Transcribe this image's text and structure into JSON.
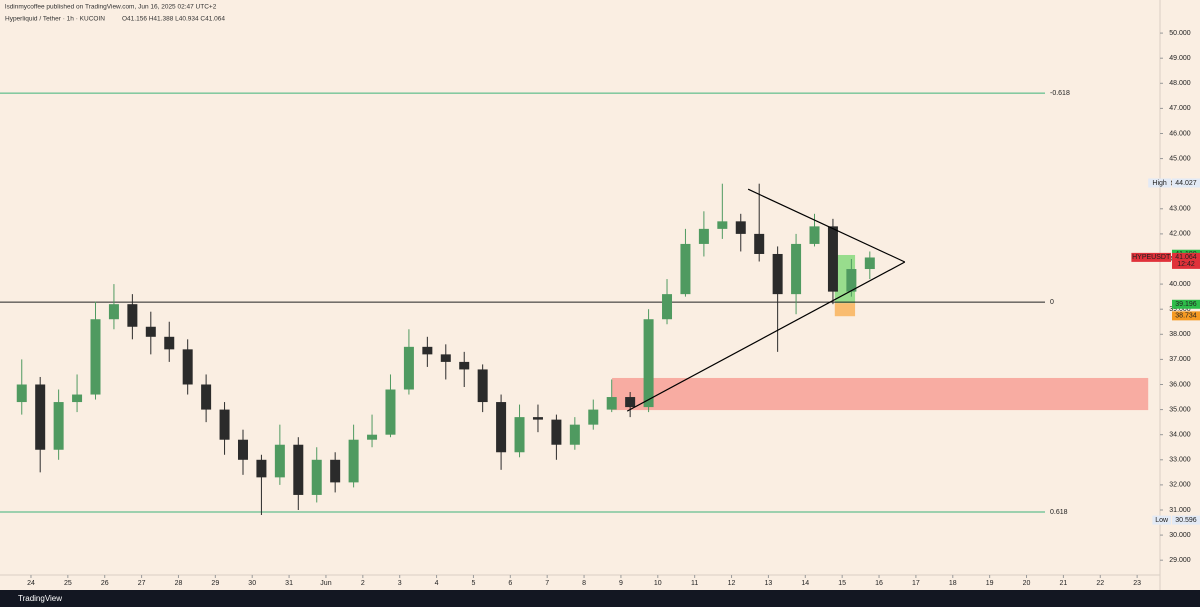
{
  "header": {
    "publisher": "lsdinmycoffee published on TradingView.com, Jun 16, 2025 02:47 UTC+2",
    "symbol": "Hyperliquid / Tether · 1h · KUCOIN",
    "ohlc": "O41.156 H41.388 L40.934 C41.064"
  },
  "footer": {
    "brand": "TradingView"
  },
  "chart_data": {
    "type": "candlestick",
    "x": [
      -0.25,
      0.25,
      0.75,
      1.25,
      1.75,
      2.25,
      2.75,
      3.25,
      3.75,
      4.25,
      4.75,
      5.25,
      5.75,
      6.25,
      6.75,
      7.25,
      7.75,
      8.25,
      8.75,
      9.25,
      9.75,
      10.25,
      10.75,
      11.25,
      11.75,
      12.25,
      12.75,
      13.25,
      13.75,
      14.25,
      14.75,
      15.25,
      15.75,
      16.25,
      16.75,
      17.25,
      17.75,
      18.25,
      18.75,
      19.25,
      19.75,
      20.25,
      20.75,
      21.25,
      21.75,
      22.25,
      22.75
    ],
    "open": [
      35.3,
      36.0,
      33.4,
      35.3,
      35.6,
      38.6,
      39.2,
      38.3,
      37.9,
      37.4,
      36.0,
      35.0,
      33.8,
      33.0,
      32.3,
      33.6,
      31.6,
      33.0,
      32.1,
      33.8,
      34.0,
      35.8,
      37.5,
      37.2,
      36.9,
      36.6,
      35.3,
      33.3,
      34.7,
      34.6,
      33.6,
      34.4,
      35.0,
      35.5,
      35.1,
      38.6,
      39.6,
      41.6,
      42.2,
      42.5,
      42.0,
      41.2,
      39.6,
      41.6,
      42.3,
      39.7,
      40.6
    ],
    "high": [
      37.0,
      36.3,
      35.8,
      36.4,
      39.3,
      40.0,
      39.6,
      38.9,
      38.5,
      37.8,
      36.4,
      35.3,
      34.2,
      33.2,
      34.4,
      33.9,
      33.5,
      33.3,
      34.4,
      34.8,
      36.4,
      38.2,
      37.9,
      37.6,
      37.3,
      36.8,
      35.6,
      35.2,
      35.2,
      34.8,
      34.7,
      35.4,
      36.2,
      35.7,
      39.0,
      40.2,
      42.2,
      42.9,
      44.0,
      42.8,
      44.0,
      41.5,
      42.0,
      42.8,
      42.6,
      41.0,
      41.3
    ],
    "low": [
      34.8,
      32.5,
      33.0,
      34.9,
      35.4,
      38.2,
      37.8,
      37.2,
      36.9,
      35.6,
      34.5,
      33.2,
      32.4,
      30.8,
      32.0,
      31.0,
      31.3,
      31.7,
      31.9,
      33.5,
      33.9,
      35.6,
      36.7,
      36.2,
      35.9,
      34.9,
      32.6,
      33.1,
      34.1,
      33.0,
      33.4,
      34.2,
      34.9,
      34.7,
      34.9,
      38.4,
      39.5,
      41.1,
      41.8,
      41.3,
      40.9,
      37.3,
      38.8,
      41.5,
      39.2,
      39.5,
      40.2
    ],
    "close": [
      36.0,
      33.4,
      35.3,
      35.6,
      38.6,
      39.2,
      38.3,
      37.9,
      37.4,
      36.0,
      35.0,
      33.8,
      33.0,
      32.3,
      33.6,
      31.6,
      33.0,
      32.1,
      33.8,
      34.0,
      35.8,
      37.5,
      37.2,
      36.9,
      36.6,
      35.3,
      33.3,
      34.7,
      34.6,
      33.6,
      34.4,
      35.0,
      35.5,
      35.1,
      38.6,
      39.6,
      41.6,
      42.2,
      42.5,
      42.0,
      41.2,
      39.6,
      41.6,
      42.3,
      39.7,
      40.6,
      41.06
    ],
    "up_color": "#4f9a60",
    "down_color": "#2b2b2b",
    "xlim": [
      -0.84,
      30.62
    ],
    "ylim": [
      28.41,
      50.92
    ],
    "xticks": [
      {
        "value": 0,
        "label": "24"
      },
      {
        "value": 1,
        "label": "25"
      },
      {
        "value": 2,
        "label": "26"
      },
      {
        "value": 3,
        "label": "27"
      },
      {
        "value": 4,
        "label": "28"
      },
      {
        "value": 5,
        "label": "29"
      },
      {
        "value": 6,
        "label": "30"
      },
      {
        "value": 7,
        "label": "31"
      },
      {
        "value": 8,
        "label": "Jun"
      },
      {
        "value": 9,
        "label": "2"
      },
      {
        "value": 10,
        "label": "3"
      },
      {
        "value": 11,
        "label": "4"
      },
      {
        "value": 12,
        "label": "5"
      },
      {
        "value": 13,
        "label": "6"
      },
      {
        "value": 14,
        "label": "7"
      },
      {
        "value": 15,
        "label": "8"
      },
      {
        "value": 16,
        "label": "9"
      },
      {
        "value": 17,
        "label": "10"
      },
      {
        "value": 18,
        "label": "11"
      },
      {
        "value": 19,
        "label": "12"
      },
      {
        "value": 20,
        "label": "13"
      },
      {
        "value": 21,
        "label": "14"
      },
      {
        "value": 22,
        "label": "15"
      },
      {
        "value": 23,
        "label": "16"
      },
      {
        "value": 24,
        "label": "17"
      },
      {
        "value": 25,
        "label": "18"
      },
      {
        "value": 26,
        "label": "19"
      },
      {
        "value": 27,
        "label": "20"
      },
      {
        "value": 28,
        "label": "21"
      },
      {
        "value": 29,
        "label": "22"
      },
      {
        "value": 30,
        "label": "23"
      }
    ],
    "yticks": [
      {
        "value": 50,
        "label": "50.000"
      },
      {
        "value": 49,
        "label": "49.000"
      },
      {
        "value": 48,
        "label": "48.000"
      },
      {
        "value": 47,
        "label": "47.000"
      },
      {
        "value": 46,
        "label": "46.000"
      },
      {
        "value": 45,
        "label": "45.000"
      },
      {
        "value": 44,
        "label": "44.000"
      },
      {
        "value": 43,
        "label": "43.000"
      },
      {
        "value": 42,
        "label": "42.000"
      },
      {
        "value": 41,
        "label": "41.000"
      },
      {
        "value": 40,
        "label": "40.000"
      },
      {
        "value": 39,
        "label": "39.000"
      },
      {
        "value": 38,
        "label": "38.000"
      },
      {
        "value": 37,
        "label": "37.000"
      },
      {
        "value": 36,
        "label": "36.000"
      },
      {
        "value": 35,
        "label": "35.000"
      },
      {
        "value": 34,
        "label": "34.000"
      },
      {
        "value": 33,
        "label": "33.000"
      },
      {
        "value": 32,
        "label": "32.000"
      },
      {
        "value": 31,
        "label": "31.000"
      },
      {
        "value": 30,
        "label": "30.000"
      },
      {
        "value": 29,
        "label": "29.000"
      }
    ],
    "levels": [
      {
        "value": 47.61,
        "label": "-0.618",
        "color": "#3fb37a"
      },
      {
        "value": 39.28,
        "label": "0",
        "color": "#222222"
      },
      {
        "value": 30.92,
        "label": "0.618",
        "color": "#3fb37a"
      }
    ],
    "price_labels": [
      {
        "value": 44.027,
        "label": "44.027",
        "title": "High",
        "color": "#e3eaf5",
        "text_color": "#1e3a70"
      },
      {
        "value": 41.19,
        "label": "41.190",
        "color": "#2ebd4a",
        "text_color": "#ffffff"
      },
      {
        "value": 41.064,
        "label": "41.064",
        "title": "HYPEUSDT",
        "sub": "12:42",
        "color": "#e0313a",
        "text_color": "#ffffff"
      },
      {
        "value": 39.196,
        "label": "39.196",
        "color": "#2ebd4a",
        "text_color": "#ffffff"
      },
      {
        "value": 38.734,
        "label": "38.734",
        "color": "#f59a23",
        "text_color": "#222222"
      },
      {
        "value": 30.596,
        "label": "30.596",
        "title": "Low",
        "color": "#e3eaf5",
        "text_color": "#1e3a70"
      }
    ],
    "trendlines": [
      {
        "x": [
          16.17,
          23.7
        ],
        "y": [
          34.94,
          40.88
        ]
      },
      {
        "x": [
          19.45,
          23.7
        ],
        "y": [
          43.78,
          40.88
        ]
      }
    ],
    "zones": [
      {
        "x": [
          15.76,
          30.3
        ],
        "y": [
          34.98,
          36.26
        ],
        "color": "#f7a096"
      },
      {
        "x": [
          21.8,
          22.35
        ],
        "y": [
          39.24,
          41.16
        ],
        "color": "#86d97e"
      },
      {
        "x": [
          21.8,
          22.35
        ],
        "y": [
          38.72,
          39.24
        ],
        "color": "#f8b35c"
      }
    ]
  }
}
